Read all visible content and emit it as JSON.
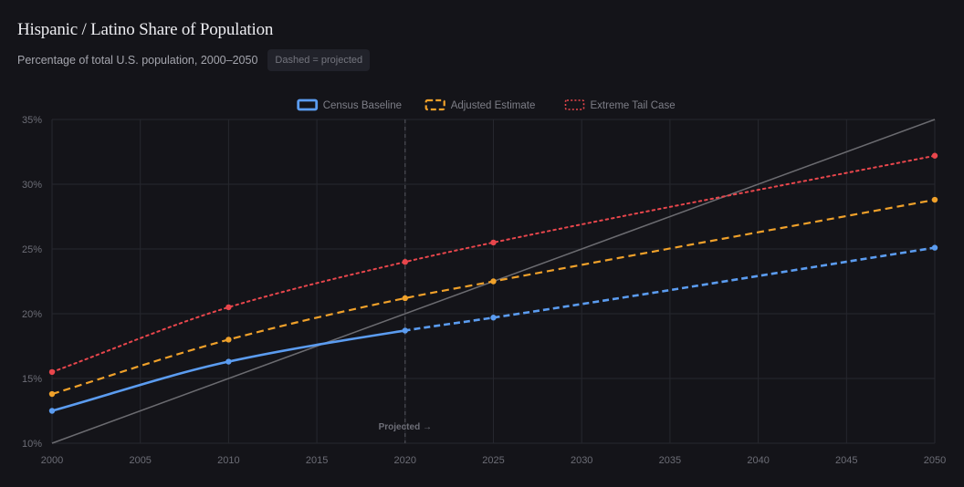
{
  "header": {
    "title": "Hispanic / Latino Share of Population",
    "subtitle": "Percentage of total U.S. population, 2000–2050",
    "badge": "Dashed = projected"
  },
  "chart_data": {
    "type": "line",
    "title": "Hispanic / Latino Share of Population",
    "subtitle": "Percentage of total U.S. population, 2000–2050",
    "xlim": [
      2000,
      2050
    ],
    "ylim": [
      10,
      35
    ],
    "x_ticks": [
      2000,
      2005,
      2010,
      2015,
      2020,
      2025,
      2030,
      2035,
      2040,
      2045,
      2050
    ],
    "y_ticks": [
      10,
      15,
      20,
      25,
      30,
      35
    ],
    "y_tick_labels": [
      "10%",
      "15%",
      "20%",
      "25%",
      "30%",
      "35%"
    ],
    "grid": true,
    "legend_position": "top-center",
    "annotation": {
      "x": 2020,
      "label": "Projected →"
    },
    "x": [
      2000,
      2010,
      2020,
      2025,
      2050
    ],
    "series": [
      {
        "name": "Census Baseline",
        "color": "#5b9cf0",
        "style": "solid-then-dashed",
        "values": [
          12.5,
          16.3,
          18.7,
          19.7,
          25.1
        ]
      },
      {
        "name": "Adjusted Estimate",
        "color": "#f0a12a",
        "style": "dashed",
        "values": [
          13.8,
          18.0,
          21.2,
          22.5,
          28.8
        ]
      },
      {
        "name": "Extreme Tail Case",
        "color": "#e8464c",
        "style": "dotted",
        "values": [
          15.5,
          20.5,
          24.0,
          25.5,
          32.2
        ]
      }
    ],
    "reference_line": {
      "color": "#6b6b70",
      "from": [
        2000,
        10
      ],
      "to": [
        2050,
        35
      ]
    }
  }
}
